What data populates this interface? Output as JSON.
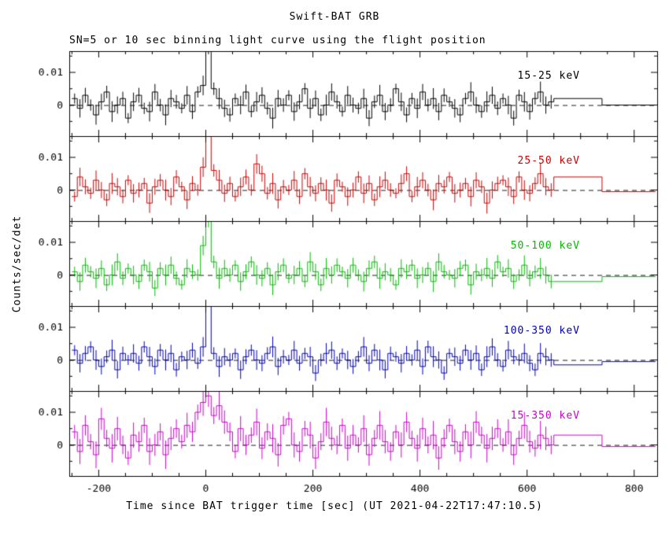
{
  "chart_data": {
    "type": "line",
    "title": "Swift-BAT GRB",
    "subtitle": "SN=5 or 10 sec binning light curve using the flight position",
    "xlabel": "Time since BAT trigger time [sec] (UT 2021-04-22T17:47:10.5)",
    "ylabel": "Counts/sec/det",
    "x_start": -250,
    "bin_width": 10,
    "value_scale": 0.001,
    "xlim": [
      -255,
      843
    ],
    "ylim": [
      -0.0095,
      0.0165
    ],
    "ylim_milli": [
      -9.5,
      16.5
    ],
    "x_ticks": [
      -200,
      0,
      200,
      400,
      600,
      800
    ],
    "x_tick_labels": [
      "-200",
      "0",
      "200",
      "400",
      "600",
      "800"
    ],
    "x_minor_step": 50,
    "y_ticks_milli": [
      0,
      10
    ],
    "y_tick_labels": [
      "0",
      "0.01"
    ],
    "y_minor_ticks_milli": [
      -5,
      5,
      15
    ],
    "grid": false,
    "legend_position": "inside-right-per-panel",
    "zero_line": {
      "value": 0,
      "style": "dashed",
      "color": "#1a1a1a"
    },
    "panels": [
      {
        "label": "15-25 keV",
        "color": "#000000",
        "err_milli": 2.2,
        "bins_milli": [
          2,
          -1,
          3,
          0,
          -3,
          1,
          4,
          -2,
          0,
          2,
          -4,
          1,
          3,
          -1,
          -2,
          4,
          0,
          -3,
          2,
          1,
          -1,
          3,
          -2,
          4,
          6,
          18,
          5,
          2,
          -1,
          -3,
          2,
          0,
          4,
          -2,
          1,
          3,
          -1,
          -4,
          2,
          0,
          3,
          -2,
          1,
          5,
          -1,
          2,
          -3,
          0,
          4,
          1,
          -2,
          3,
          0,
          -1,
          2,
          -4,
          1,
          3,
          -2,
          0,
          5,
          1,
          -3,
          2,
          -1,
          4,
          0,
          2,
          -2,
          3,
          1,
          -1,
          -3,
          2,
          4,
          0,
          -2,
          1,
          3,
          -1,
          2,
          0,
          -4,
          3,
          1,
          -2,
          2,
          4,
          0,
          1
        ],
        "coarse_steps": [
          {
            "x0": 650,
            "x1": 740,
            "y_milli": 2
          },
          {
            "x0": 740,
            "x1": 840,
            "y_milli": 0
          }
        ]
      },
      {
        "label": "25-50 keV",
        "color": "#cc0000",
        "err_milli": 2.2,
        "bins_milli": [
          -2,
          4,
          1,
          -1,
          3,
          0,
          -3,
          2,
          1,
          -2,
          3,
          -1,
          0,
          2,
          -4,
          1,
          3,
          0,
          -2,
          4,
          1,
          -3,
          2,
          0,
          7,
          20,
          6,
          3,
          -1,
          2,
          -2,
          1,
          4,
          0,
          8,
          5,
          -1,
          2,
          -3,
          1,
          0,
          3,
          -2,
          5,
          1,
          -1,
          2,
          0,
          -4,
          3,
          1,
          -2,
          0,
          4,
          -1,
          2,
          -3,
          1,
          3,
          0,
          -1,
          2,
          5,
          -2,
          1,
          3,
          0,
          -3,
          2,
          1,
          4,
          -1,
          0,
          2,
          -2,
          3,
          1,
          -4,
          0,
          2,
          3,
          1,
          -2,
          4,
          0,
          -1,
          2,
          5,
          1,
          0
        ],
        "coarse_steps": [
          {
            "x0": 650,
            "x1": 740,
            "y_milli": 4
          },
          {
            "x0": 740,
            "x1": 840,
            "y_milli": -0.5
          }
        ]
      },
      {
        "label": "50-100 keV",
        "color": "#00bb00",
        "err_milli": 2.2,
        "bins_milli": [
          1,
          -2,
          3,
          1,
          -1,
          2,
          -3,
          0,
          4,
          -1,
          2,
          0,
          -2,
          3,
          1,
          -4,
          2,
          0,
          3,
          -1,
          -3,
          2,
          1,
          0,
          9,
          17,
          4,
          -1,
          2,
          0,
          3,
          -2,
          1,
          4,
          0,
          -1,
          2,
          -3,
          1,
          3,
          -1,
          0,
          2,
          -2,
          4,
          1,
          -3,
          2,
          0,
          3,
          1,
          -1,
          3,
          0,
          -2,
          2,
          4,
          -1,
          1,
          0,
          -3,
          2,
          1,
          3,
          -1,
          0,
          2,
          -2,
          4,
          1,
          0,
          -1,
          2,
          3,
          -3,
          1,
          0,
          2,
          -1,
          4,
          1,
          2,
          -2,
          0,
          3,
          -1,
          1,
          2,
          0,
          -2
        ],
        "coarse_steps": [
          {
            "x0": 650,
            "x1": 740,
            "y_milli": -2
          },
          {
            "x0": 740,
            "x1": 840,
            "y_milli": -0.5
          }
        ]
      },
      {
        "label": "100-350 keV",
        "color": "#0000bb",
        "err_milli": 2.2,
        "bins_milli": [
          3,
          -1,
          2,
          4,
          0,
          -2,
          1,
          3,
          -3,
          2,
          0,
          2,
          -1,
          4,
          1,
          -2,
          3,
          0,
          2,
          -3,
          1,
          0,
          3,
          -1,
          4,
          22,
          2,
          -2,
          1,
          0,
          2,
          -3,
          1,
          3,
          0,
          -1,
          2,
          4,
          -2,
          1,
          0,
          3,
          -1,
          2,
          1,
          -4,
          0,
          2,
          3,
          -1,
          2,
          0,
          -2,
          1,
          4,
          -1,
          3,
          0,
          -3,
          2,
          1,
          -1,
          2,
          0,
          3,
          -2,
          4,
          1,
          0,
          -4,
          2,
          1,
          -1,
          3,
          0,
          2,
          -3,
          1,
          4,
          0,
          -2,
          3,
          1,
          0,
          2,
          -1,
          -3,
          2,
          1,
          0
        ],
        "coarse_steps": [
          {
            "x0": 650,
            "x1": 740,
            "y_milli": -1.5
          },
          {
            "x0": 740,
            "x1": 840,
            "y_milli": -0.5
          }
        ]
      },
      {
        "label": "15-350 keV",
        "color": "#cc00cc",
        "err_milli": 3.0,
        "bins_milli": [
          4,
          -2,
          6,
          1,
          -3,
          8,
          2,
          -1,
          5,
          0,
          -4,
          3,
          1,
          6,
          -2,
          0,
          4,
          -3,
          2,
          5,
          1,
          6,
          4,
          10,
          13,
          15,
          9,
          12,
          7,
          4,
          -2,
          5,
          0,
          3,
          7,
          -1,
          4,
          2,
          -3,
          6,
          8,
          0,
          -2,
          5,
          3,
          -4,
          1,
          7,
          2,
          0,
          6,
          -1,
          3,
          0,
          5,
          -3,
          2,
          6,
          1,
          -2,
          4,
          0,
          7,
          2,
          -1,
          5,
          0,
          3,
          -4,
          2,
          6,
          1,
          -2,
          4,
          0,
          7,
          3,
          -1,
          2,
          5,
          0,
          4,
          -3,
          2,
          6,
          1,
          -1,
          3,
          2,
          0
        ],
        "coarse_steps": [
          {
            "x0": 650,
            "x1": 740,
            "y_milli": 3
          },
          {
            "x0": 740,
            "x1": 840,
            "y_milli": -0.5
          }
        ]
      }
    ]
  }
}
